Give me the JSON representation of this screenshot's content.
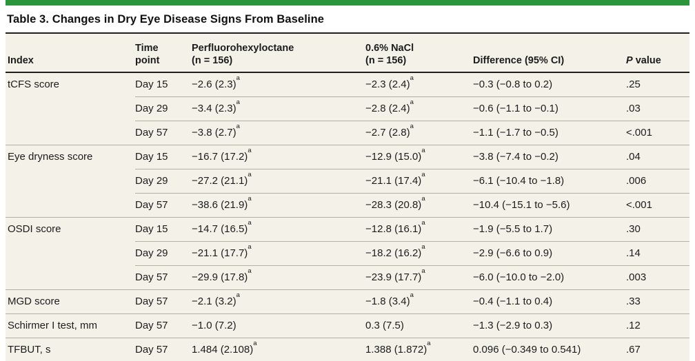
{
  "title": "Table 3. Changes in Dry Eye Disease Signs From Baseline",
  "accent_color": "#2B9639",
  "band_color": "#F3F1E8",
  "header": {
    "index": "Index",
    "time": "Time\npoint",
    "drug": "Perfluorohexyloctane\n(n = 156)",
    "nacl": "0.6% NaCl\n(n = 156)",
    "difference": "Difference (95% CI)",
    "p_italic": "P",
    "p_rest": " value"
  },
  "groups": [
    {
      "index": "tCFS score",
      "rows": [
        {
          "time": "Day 15",
          "pfh": "−2.6 (2.3)",
          "pfh_sup": "a",
          "nacl": "−2.3 (2.4)",
          "nacl_sup": "a",
          "diff": "−0.3 (−0.8 to 0.2)",
          "p": ".25"
        },
        {
          "time": "Day 29",
          "pfh": "−3.4 (2.3)",
          "pfh_sup": "a",
          "nacl": "−2.8 (2.4)",
          "nacl_sup": "a",
          "diff": "−0.6 (−1.1 to −0.1)",
          "p": ".03"
        },
        {
          "time": "Day 57",
          "pfh": "−3.8 (2.7)",
          "pfh_sup": "a",
          "nacl": "−2.7 (2.8)",
          "nacl_sup": "a",
          "diff": "−1.1 (−1.7 to −0.5)",
          "p": "<.001"
        }
      ]
    },
    {
      "index": "Eye dryness score",
      "rows": [
        {
          "time": "Day 15",
          "pfh": "−16.7 (17.2)",
          "pfh_sup": "a",
          "nacl": "−12.9 (15.0)",
          "nacl_sup": "a",
          "diff": "−3.8 (−7.4 to −0.2)",
          "p": ".04"
        },
        {
          "time": "Day 29",
          "pfh": "−27.2 (21.1)",
          "pfh_sup": "a",
          "nacl": "−21.1 (17.4)",
          "nacl_sup": "a",
          "diff": "−6.1 (−10.4 to −1.8)",
          "p": ".006"
        },
        {
          "time": "Day 57",
          "pfh": "−38.6 (21.9)",
          "pfh_sup": "a",
          "nacl": "−28.3 (20.8)",
          "nacl_sup": "a",
          "diff": "−10.4 (−15.1 to −5.6)",
          "p": "<.001"
        }
      ]
    },
    {
      "index": "OSDI score",
      "rows": [
        {
          "time": "Day 15",
          "pfh": "−14.7 (16.5)",
          "pfh_sup": "a",
          "nacl": "−12.8 (16.1)",
          "nacl_sup": "a",
          "diff": "−1.9 (−5.5 to 1.7)",
          "p": ".30"
        },
        {
          "time": "Day 29",
          "pfh": "−21.1 (17.7)",
          "pfh_sup": "a",
          "nacl": "−18.2 (16.2)",
          "nacl_sup": "a",
          "diff": "−2.9 (−6.6 to 0.9)",
          "p": ".14"
        },
        {
          "time": "Day 57",
          "pfh": "−29.9 (17.8)",
          "pfh_sup": "a",
          "nacl": "−23.9 (17.7)",
          "nacl_sup": "a",
          "diff": "−6.0 (−10.0 to −2.0)",
          "p": ".003"
        }
      ]
    },
    {
      "index": "MGD score",
      "rows": [
        {
          "time": "Day 57",
          "pfh": "−2.1 (3.2)",
          "pfh_sup": "a",
          "nacl": "−1.8 (3.4)",
          "nacl_sup": "a",
          "diff": "−0.4 (−1.1 to 0.4)",
          "p": ".33"
        }
      ]
    },
    {
      "index": "Schirmer I test, mm",
      "rows": [
        {
          "time": "Day 57",
          "pfh": "−1.0 (7.2)",
          "pfh_sup": "",
          "nacl": "0.3 (7.5)",
          "nacl_sup": "",
          "diff": "−1.3 (−2.9 to 0.3)",
          "p": ".12"
        }
      ]
    },
    {
      "index": "TFBUT, s",
      "rows": [
        {
          "time": "Day 57",
          "pfh": "1.484 (2.108)",
          "pfh_sup": "a",
          "nacl": "1.388 (1.872)",
          "nacl_sup": "a",
          "diff": "0.096 (−0.349 to 0.541)",
          "p": ".67"
        }
      ]
    }
  ]
}
